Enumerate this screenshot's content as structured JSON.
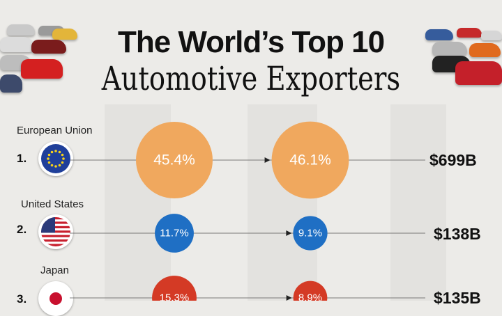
{
  "title": {
    "line1": "The World’s Top 10",
    "line2": "Automotive Exporters"
  },
  "chart_data": {
    "type": "bubble-comparison",
    "title": "The World’s Top 10 Automotive Exporters",
    "rows": [
      {
        "rank": "1.",
        "name": "European Union",
        "from_share": 45.4,
        "from_label": "45.4%",
        "to_share": 46.1,
        "to_label": "46.1%",
        "value_label": "$699B",
        "color": "#f0a85e",
        "flag": "eu-flag-icon"
      },
      {
        "rank": "2.",
        "name": "United States",
        "from_share": 11.7,
        "from_label": "11.7%",
        "to_share": 9.1,
        "to_label": "9.1%",
        "value_label": "$138B",
        "color": "#1f6fc4",
        "flag": "us-flag-icon"
      },
      {
        "rank": "3.",
        "name": "Japan",
        "from_share": 15.3,
        "from_label": "15.3%",
        "to_share": 8.9,
        "to_label": "8.9%",
        "value_label": "$135B",
        "color": "#d43a25",
        "flag": "japan-flag-icon"
      }
    ]
  }
}
